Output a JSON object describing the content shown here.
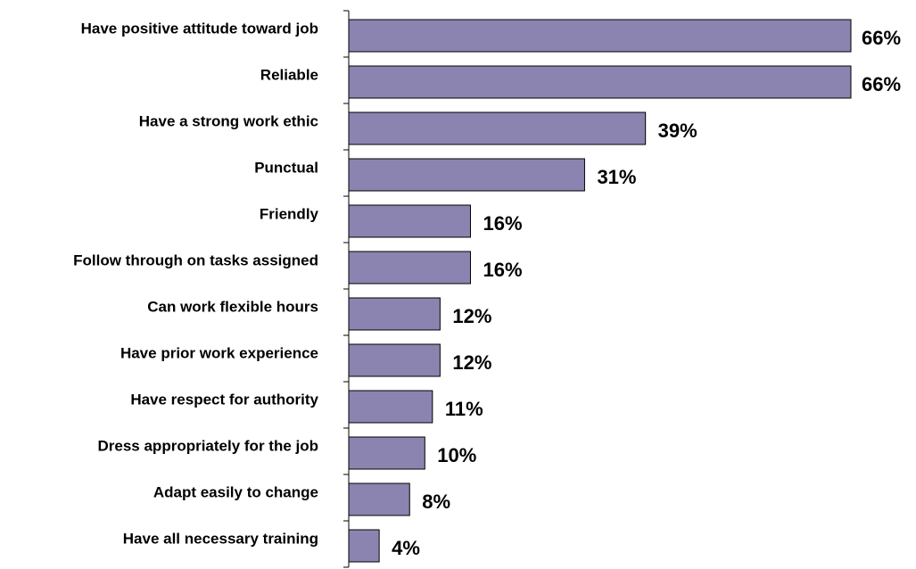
{
  "chart_data": {
    "type": "bar",
    "orientation": "horizontal",
    "categories": [
      "Have positive attitude toward job",
      "Reliable",
      "Have a strong work ethic",
      "Punctual",
      "Friendly",
      "Follow through on tasks assigned",
      "Can work flexible hours",
      "Have prior work experience",
      "Have respect for authority",
      "Dress appropriately for the job",
      "Adapt easily to change",
      "Have all necessary training"
    ],
    "values": [
      66,
      66,
      39,
      31,
      16,
      16,
      12,
      12,
      11,
      10,
      8,
      4
    ],
    "value_labels": [
      "66%",
      "66%",
      "39%",
      "31%",
      "16%",
      "16%",
      "12%",
      "12%",
      "11%",
      "10%",
      "8%",
      "4%"
    ],
    "unit": "%",
    "title": "",
    "xlabel": "",
    "ylabel": "",
    "xlim": [
      0,
      66
    ],
    "grid": false,
    "legend": "none",
    "colors": {
      "bar_fill": "#8B84B0",
      "bar_stroke": "#000000",
      "axis": "#000000"
    }
  }
}
